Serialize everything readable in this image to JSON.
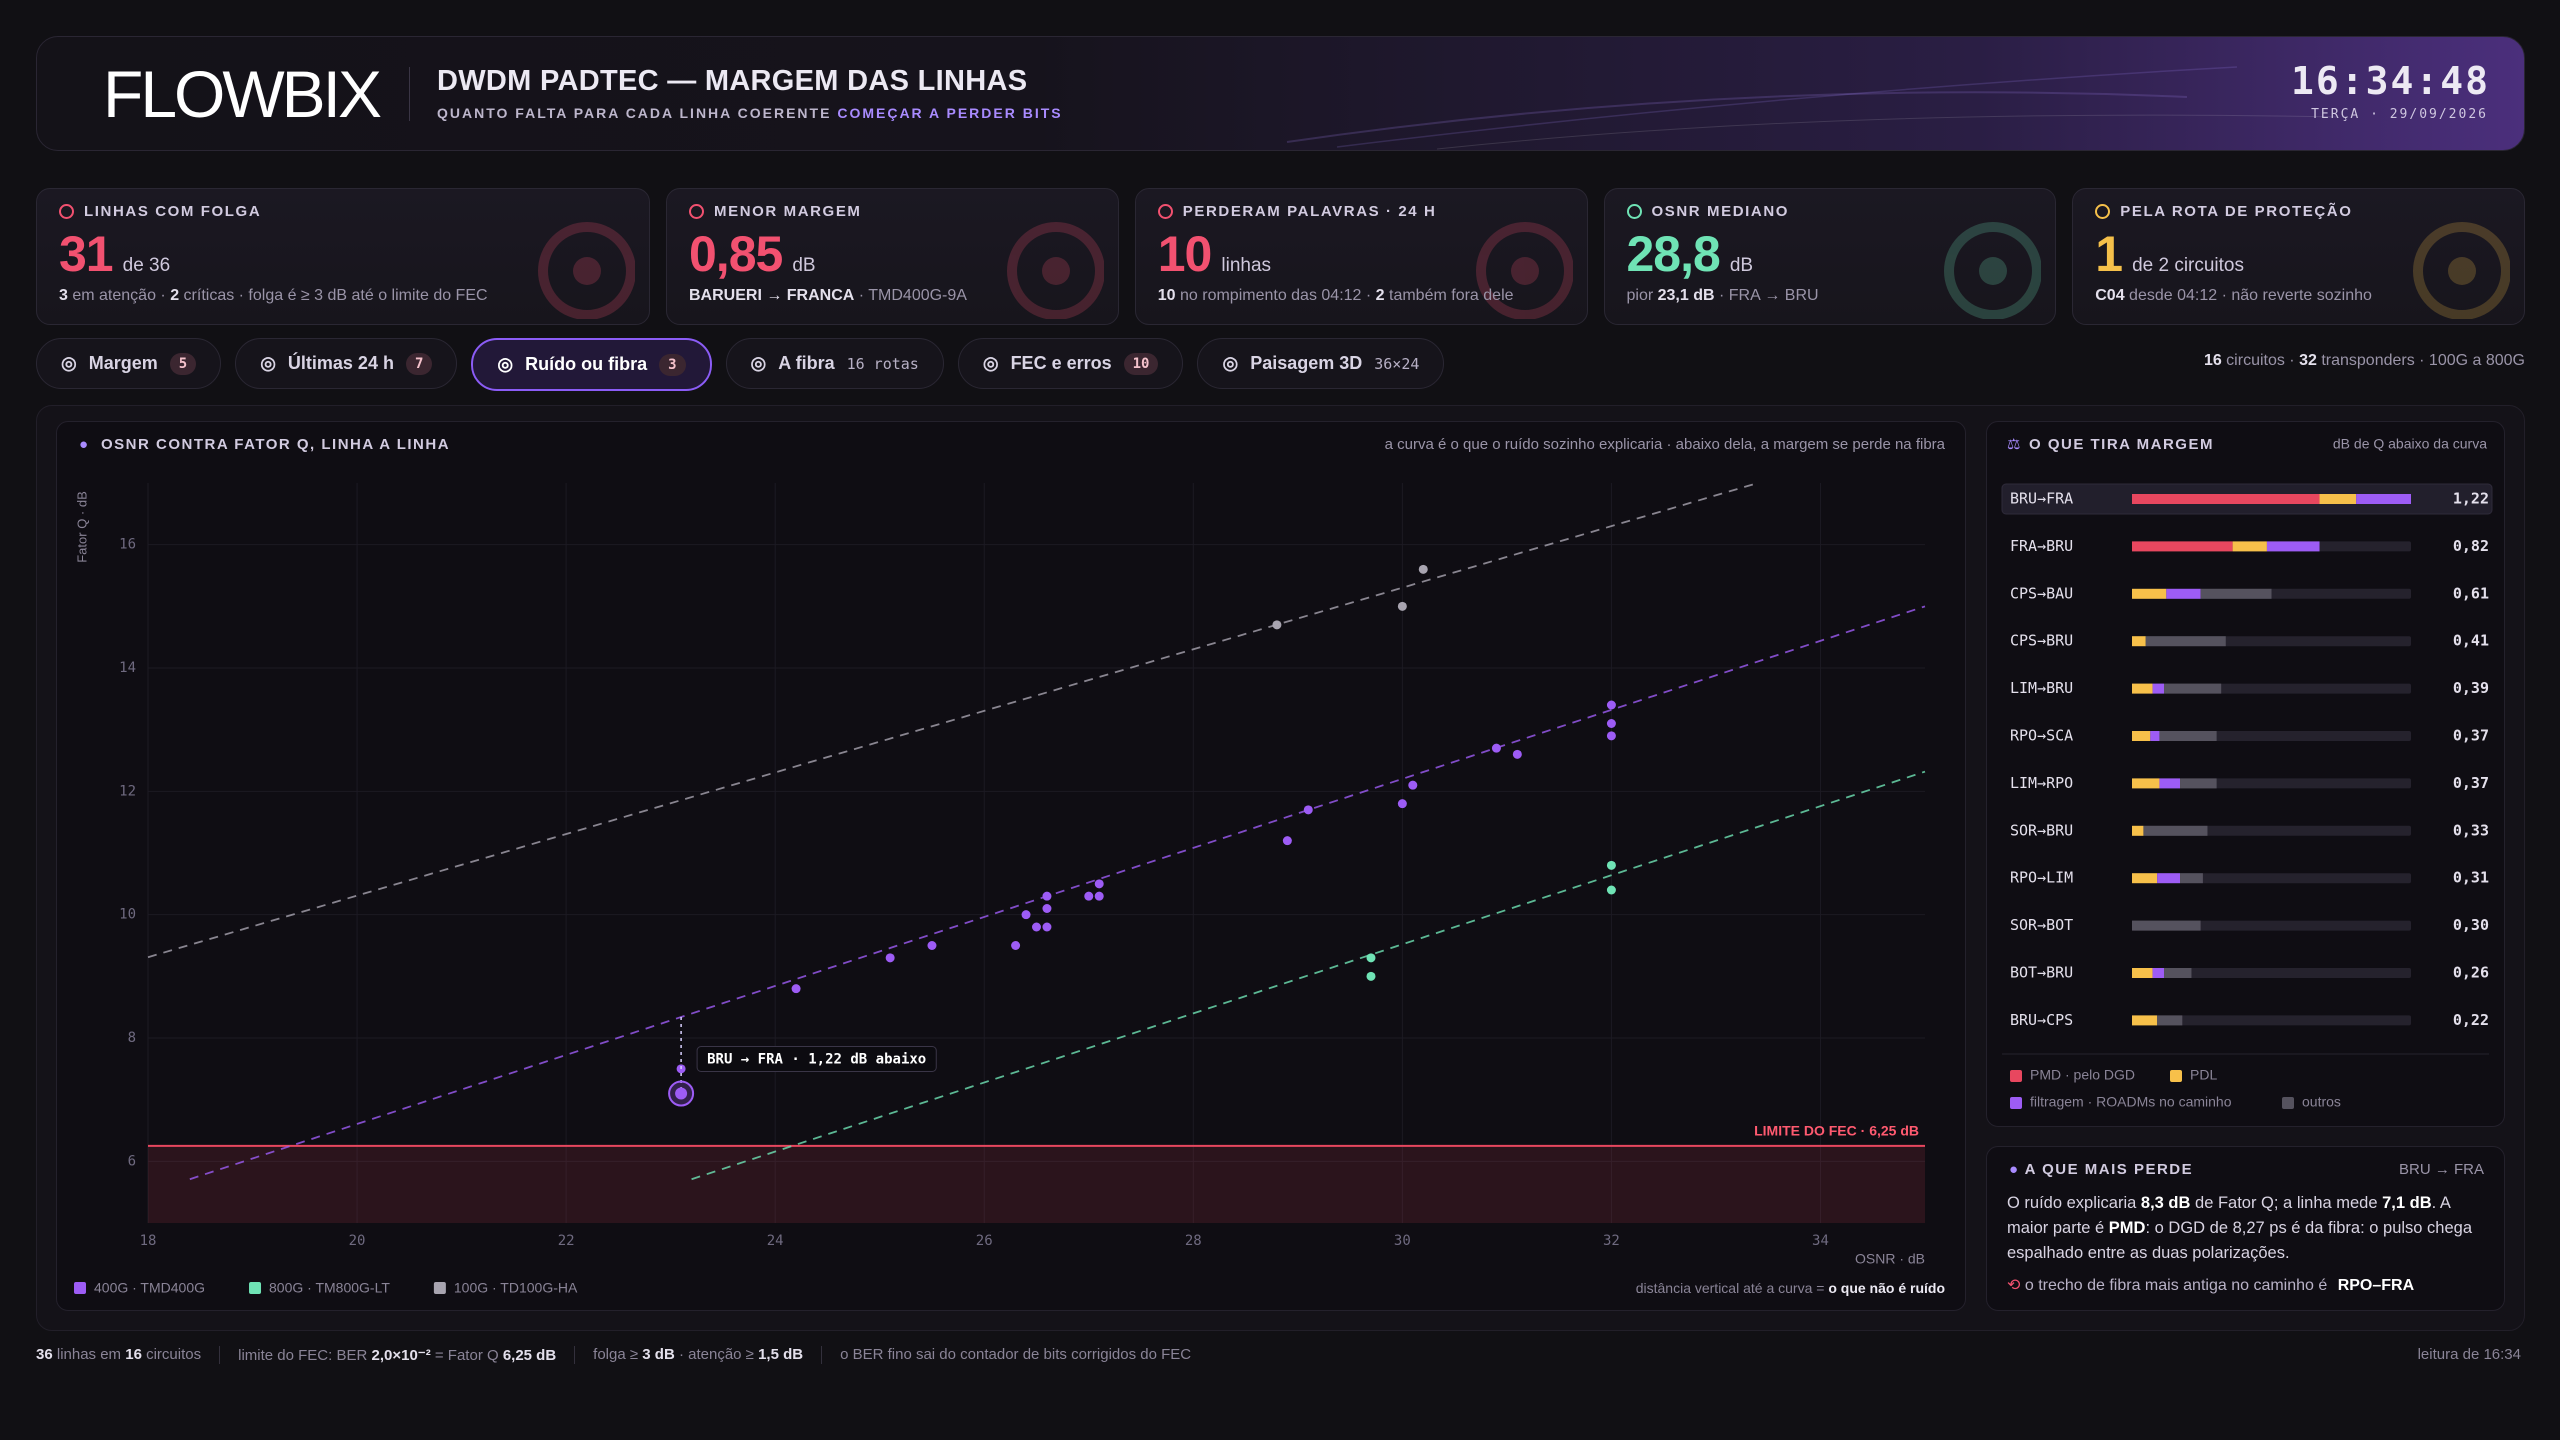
{
  "header": {
    "logo": "FLOWBIX",
    "title": "DWDM PADTEC — MARGEM DAS LINHAS",
    "subtitle": "QUANTO FALTA PARA CADA LINHA COERENTE",
    "subtitle_highlight": "COMEÇAR A PERDER BITS",
    "clock": "16:34:48",
    "date": "TERÇA · 29/09/2026"
  },
  "kpis": [
    {
      "label": "LINHAS COM FOLGA",
      "value": "31",
      "unit": "de 36",
      "color": "#f25170",
      "note": [
        {
          "strong": "3"
        },
        " em atenção · ",
        {
          "strong": "2"
        },
        " críticas · folga é ≥ 3 dB até o limite do FEC"
      ]
    },
    {
      "label": "MENOR MARGEM",
      "value": "0,85",
      "unit": "dB",
      "color": "#f25170",
      "note": [
        {
          "strong": "BARUERI → FRANCA"
        },
        " · TMD400G-9A"
      ]
    },
    {
      "label": "PERDERAM PALAVRAS · 24 H",
      "value": "10",
      "unit": "linhas",
      "color": "#f25170",
      "note": [
        {
          "strong": "10"
        },
        " no rompimento das 04:12 · ",
        {
          "strong": "2"
        },
        " também fora dele"
      ]
    },
    {
      "label": "OSNR MEDIANO",
      "value": "28,8",
      "unit": "dB",
      "color": "#6fe3b5",
      "note": [
        "pior ",
        {
          "strong": "23,1 dB"
        },
        " · FRA → BRU"
      ]
    },
    {
      "label": "PELA ROTA DE PROTEÇÃO",
      "value": "1",
      "unit": "de 2 circuitos",
      "color": "#f5c04a",
      "note": [
        {
          "strong": "C04"
        },
        " desde 04:12 · não reverte sozinho"
      ]
    }
  ],
  "tabs": [
    {
      "label": "Margem",
      "count": "5"
    },
    {
      "label": "Últimas 24 h",
      "count": "7"
    },
    {
      "label": "Ruído ou fibra",
      "count": "3",
      "active": true
    },
    {
      "label": "A fibra",
      "meta": "16 rotas"
    },
    {
      "label": "FEC e erros",
      "count": "10"
    },
    {
      "label": "Paisagem 3D",
      "meta": "36×24"
    }
  ],
  "tabs_summary": [
    {
      "strong": "16"
    },
    " circuitos · ",
    {
      "strong": "32"
    },
    " transponders · 100G a 800G"
  ],
  "chart_data": [
    {
      "type": "scatter",
      "title": "OSNR CONTRA FATOR Q, LINHA A LINHA",
      "subtitle": "a curva é o que o ruído sozinho explicaria · abaixo dela, a margem se perde na fibra",
      "x_label": "OSNR · dB",
      "y_label": "Fator Q · dB",
      "xlim": [
        18,
        35
      ],
      "ylim": [
        5,
        17
      ],
      "xticks": [
        18,
        20,
        22,
        24,
        26,
        28,
        30,
        32,
        34
      ],
      "yticks": [
        6,
        8,
        10,
        12,
        14,
        16
      ],
      "grid": true,
      "threshold": {
        "value": 6.25,
        "label": "LIMITE DO FEC · 6,25 dB",
        "color": "#e8475f"
      },
      "annotation": {
        "series": 0,
        "point": 0,
        "label": "BRU → FRA · 1,22 dB abaixo"
      },
      "series": [
        {
          "name": "400G · TMD400G",
          "color": "#9d5cf5",
          "x": [
            23.1,
            23.1,
            24.2,
            25.1,
            25.5,
            26.3,
            26.4,
            26.5,
            26.6,
            26.6,
            26.6,
            27.0,
            27.1,
            27.1,
            28.9,
            29.1,
            30.0,
            30.1,
            30.9,
            31.1,
            32.0,
            32.0,
            32.0
          ],
          "values": [
            7.1,
            7.5,
            8.8,
            9.3,
            9.5,
            9.5,
            10.0,
            9.8,
            9.8,
            10.1,
            10.3,
            10.3,
            10.3,
            10.5,
            11.2,
            11.7,
            11.8,
            12.1,
            12.7,
            12.6,
            13.4,
            13.1,
            12.9
          ],
          "curve": {
            "x": [
              18.4,
              35
            ],
            "values": [
              5.71,
              15.0
            ]
          }
        },
        {
          "name": "800G · TM800G-LT",
          "color": "#6fe3b5",
          "x": [
            29.7,
            29.7,
            32.0,
            32.0
          ],
          "values": [
            9.3,
            9.0,
            10.8,
            10.4
          ],
          "curve": {
            "x": [
              23.2,
              35
            ],
            "values": [
              5.71,
              12.32
            ]
          }
        },
        {
          "name": "100G · TD100G-HA",
          "color": "#a8a4b0",
          "x": [
            28.8,
            30.0,
            30.2
          ],
          "values": [
            14.7,
            15.0,
            15.6
          ],
          "curve": {
            "x": [
              18,
              33.4
            ],
            "values": [
              9.31,
              17.0
            ]
          }
        }
      ],
      "footnote": [
        "distância vertical até a curva = ",
        {
          "strong": "o que não é ruído"
        }
      ]
    },
    {
      "type": "bar",
      "title": "O QUE TIRA MARGEM",
      "subtitle": "dB de Q abaixo da curva",
      "categories": [
        "BRU→FRA",
        "FRA→BRU",
        "CPS→BAU",
        "CPS→BRU",
        "LIM→BRU",
        "RPO→SCA",
        "LIM→RPO",
        "SOR→BRU",
        "RPO→LIM",
        "SOR→BOT",
        "BOT→BRU",
        "BRU→CPS"
      ],
      "xlim": [
        0,
        1.22
      ],
      "highlight": 0,
      "series": [
        {
          "name": "PMD · pelo DGD",
          "color": "#e8475f",
          "values": [
            0.82,
            0.44,
            null,
            null,
            null,
            null,
            null,
            null,
            null,
            null,
            null,
            null
          ]
        },
        {
          "name": "PDL",
          "color": "#f7c04a",
          "values": [
            0.16,
            0.15,
            0.15,
            0.06,
            0.09,
            0.08,
            0.12,
            0.05,
            0.11,
            null,
            0.09,
            0.11
          ]
        },
        {
          "name": "filtragem · ROADMs no caminho",
          "color": "#9d5cf5",
          "values": [
            0.24,
            0.23,
            0.15,
            null,
            0.05,
            0.04,
            0.09,
            null,
            0.1,
            null,
            0.05,
            null
          ]
        },
        {
          "name": "outros",
          "color": "#55525e",
          "values": [
            null,
            null,
            0.31,
            0.35,
            0.25,
            0.25,
            0.16,
            0.28,
            0.1,
            0.3,
            0.12,
            0.11
          ]
        }
      ],
      "totals": [
        1.22,
        0.82,
        0.61,
        0.41,
        0.39,
        0.37,
        0.37,
        0.33,
        0.31,
        0.3,
        0.26,
        0.22
      ],
      "total_labels": [
        "1,22",
        "0,82",
        "0,61",
        "0,41",
        "0,39",
        "0,37",
        "0,37",
        "0,33",
        "0,31",
        "0,30",
        "0,26",
        "0,22"
      ]
    }
  ],
  "loss_card": {
    "title": "A QUE MAIS PERDE",
    "route": "BRU → FRA",
    "text": [
      "O ruído explicaria ",
      {
        "strong": "8,3 dB"
      },
      " de Fator Q; a linha mede ",
      {
        "strong": "7,1 dB"
      },
      ". A maior parte é ",
      {
        "strong": "PMD"
      },
      ": o DGD de 8,27 ps é da fibra: o pulso chega espalhado entre as duas polarizações."
    ],
    "footer": [
      "o trecho de fibra mais antiga no caminho é ",
      {
        "strong": "RPO–FRA"
      }
    ]
  },
  "footer": {
    "items": [
      [
        {
          "strong": "36"
        },
        " linhas em ",
        {
          "strong": "16"
        },
        " circuitos"
      ],
      [
        "limite do FEC: BER ",
        {
          "strong": "2,0×10⁻²"
        },
        " = Fator Q ",
        {
          "strong": "6,25 dB"
        }
      ],
      [
        "folga ≥ ",
        {
          "strong": "3 dB"
        },
        " · atenção ≥ ",
        {
          "strong": "1,5 dB"
        }
      ],
      [
        "o BER fino sai do contador de bits corrigidos do FEC"
      ]
    ],
    "right": "leitura de 16:34"
  }
}
